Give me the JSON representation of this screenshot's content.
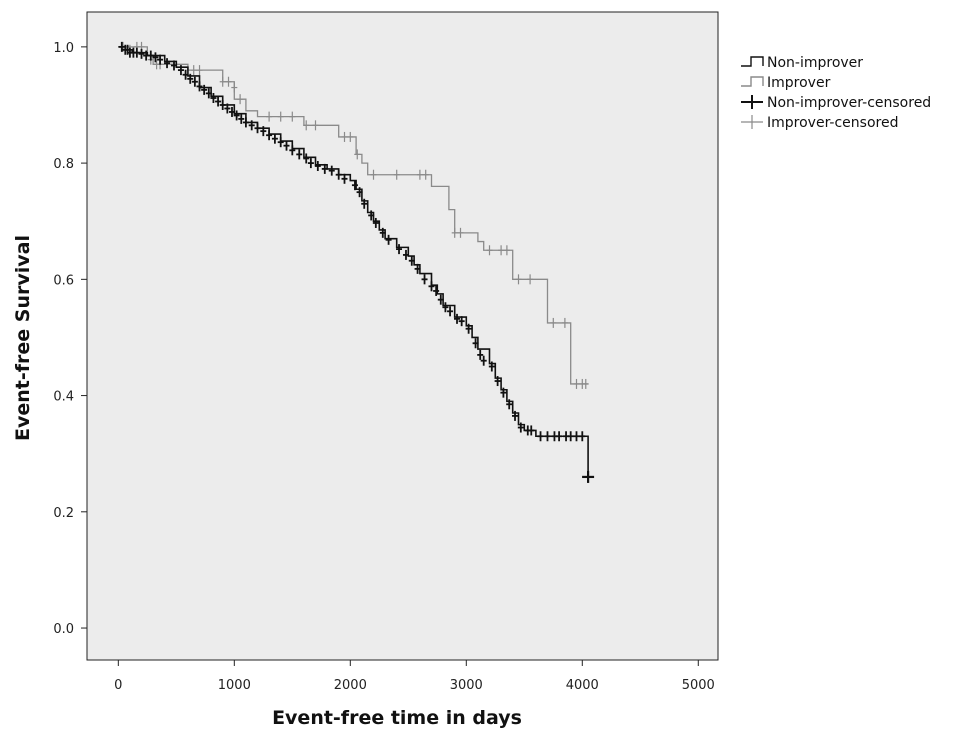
{
  "chart_data": {
    "type": "line",
    "subtype": "kaplan-meier",
    "title": "",
    "xlabel": "Event-free time in days",
    "ylabel": "Event-free Survival",
    "xlim": [
      -270,
      5170
    ],
    "ylim": [
      -0.055,
      1.06
    ],
    "xticks": [
      0,
      1000,
      2000,
      3000,
      4000,
      5000
    ],
    "yticks": [
      0.0,
      0.2,
      0.4,
      0.6,
      0.8,
      1.0
    ],
    "xtick_labels": [
      "0",
      "1000",
      "2000",
      "3000",
      "4000",
      "5000"
    ],
    "ytick_labels": [
      "0.0",
      "0.2",
      "0.4",
      "0.6",
      "0.8",
      "1.0"
    ],
    "grid": false,
    "background": "#ececec",
    "legend_position": "right",
    "legend": [
      "Non-improver",
      "Improver",
      "Non-improver-censored",
      "Improver-censored"
    ],
    "series": [
      {
        "name": "Non-improver",
        "color": "#111111",
        "steps": [
          [
            0,
            1.0
          ],
          [
            30,
            0.995
          ],
          [
            120,
            0.99
          ],
          [
            250,
            0.985
          ],
          [
            400,
            0.975
          ],
          [
            500,
            0.965
          ],
          [
            600,
            0.95
          ],
          [
            700,
            0.93
          ],
          [
            800,
            0.915
          ],
          [
            900,
            0.9
          ],
          [
            1000,
            0.885
          ],
          [
            1100,
            0.87
          ],
          [
            1200,
            0.86
          ],
          [
            1300,
            0.85
          ],
          [
            1400,
            0.838
          ],
          [
            1500,
            0.825
          ],
          [
            1600,
            0.81
          ],
          [
            1700,
            0.797
          ],
          [
            1800,
            0.79
          ],
          [
            1900,
            0.78
          ],
          [
            2000,
            0.77
          ],
          [
            2050,
            0.755
          ],
          [
            2100,
            0.735
          ],
          [
            2150,
            0.715
          ],
          [
            2200,
            0.7
          ],
          [
            2250,
            0.685
          ],
          [
            2300,
            0.67
          ],
          [
            2400,
            0.655
          ],
          [
            2500,
            0.64
          ],
          [
            2550,
            0.625
          ],
          [
            2600,
            0.61
          ],
          [
            2700,
            0.59
          ],
          [
            2750,
            0.575
          ],
          [
            2800,
            0.555
          ],
          [
            2900,
            0.535
          ],
          [
            3000,
            0.52
          ],
          [
            3050,
            0.5
          ],
          [
            3100,
            0.48
          ],
          [
            3200,
            0.455
          ],
          [
            3250,
            0.43
          ],
          [
            3300,
            0.41
          ],
          [
            3350,
            0.39
          ],
          [
            3400,
            0.37
          ],
          [
            3450,
            0.35
          ],
          [
            3500,
            0.34
          ],
          [
            3600,
            0.33
          ],
          [
            4050,
            0.26
          ],
          [
            4070,
            0.26
          ]
        ],
        "censored": [
          [
            30,
            1.0
          ],
          [
            60,
            0.995
          ],
          [
            80,
            0.995
          ],
          [
            100,
            0.99
          ],
          [
            130,
            0.99
          ],
          [
            160,
            0.99
          ],
          [
            200,
            0.988
          ],
          [
            240,
            0.985
          ],
          [
            280,
            0.985
          ],
          [
            320,
            0.982
          ],
          [
            360,
            0.978
          ],
          [
            420,
            0.972
          ],
          [
            480,
            0.968
          ],
          [
            540,
            0.96
          ],
          [
            580,
            0.952
          ],
          [
            620,
            0.945
          ],
          [
            660,
            0.94
          ],
          [
            700,
            0.932
          ],
          [
            740,
            0.926
          ],
          [
            780,
            0.92
          ],
          [
            820,
            0.912
          ],
          [
            860,
            0.906
          ],
          [
            900,
            0.9
          ],
          [
            940,
            0.894
          ],
          [
            980,
            0.888
          ],
          [
            1020,
            0.882
          ],
          [
            1060,
            0.876
          ],
          [
            1100,
            0.87
          ],
          [
            1150,
            0.865
          ],
          [
            1200,
            0.86
          ],
          [
            1250,
            0.855
          ],
          [
            1300,
            0.848
          ],
          [
            1350,
            0.842
          ],
          [
            1400,
            0.836
          ],
          [
            1450,
            0.83
          ],
          [
            1500,
            0.822
          ],
          [
            1560,
            0.815
          ],
          [
            1620,
            0.808
          ],
          [
            1660,
            0.8
          ],
          [
            1720,
            0.795
          ],
          [
            1780,
            0.79
          ],
          [
            1840,
            0.787
          ],
          [
            1900,
            0.78
          ],
          [
            1950,
            0.773
          ],
          [
            2040,
            0.762
          ],
          [
            2080,
            0.75
          ],
          [
            2120,
            0.73
          ],
          [
            2180,
            0.71
          ],
          [
            2220,
            0.697
          ],
          [
            2280,
            0.68
          ],
          [
            2330,
            0.668
          ],
          [
            2420,
            0.652
          ],
          [
            2480,
            0.642
          ],
          [
            2530,
            0.632
          ],
          [
            2580,
            0.618
          ],
          [
            2640,
            0.6
          ],
          [
            2700,
            0.588
          ],
          [
            2740,
            0.58
          ],
          [
            2780,
            0.565
          ],
          [
            2820,
            0.552
          ],
          [
            2860,
            0.545
          ],
          [
            2920,
            0.532
          ],
          [
            2960,
            0.528
          ],
          [
            3020,
            0.515
          ],
          [
            3080,
            0.49
          ],
          [
            3120,
            0.47
          ],
          [
            3150,
            0.46
          ],
          [
            3220,
            0.45
          ],
          [
            3270,
            0.425
          ],
          [
            3320,
            0.405
          ],
          [
            3370,
            0.385
          ],
          [
            3420,
            0.365
          ],
          [
            3470,
            0.345
          ],
          [
            3530,
            0.34
          ],
          [
            3560,
            0.34
          ],
          [
            3640,
            0.33
          ],
          [
            3700,
            0.33
          ],
          [
            3760,
            0.33
          ],
          [
            3800,
            0.33
          ],
          [
            3860,
            0.33
          ],
          [
            3900,
            0.33
          ],
          [
            3950,
            0.33
          ],
          [
            4000,
            0.33
          ],
          [
            4050,
            0.26
          ]
        ]
      },
      {
        "name": "Improver",
        "color": "#8a8a8a",
        "steps": [
          [
            0,
            1.0
          ],
          [
            250,
            0.985
          ],
          [
            300,
            0.97
          ],
          [
            600,
            0.96
          ],
          [
            900,
            0.94
          ],
          [
            1000,
            0.91
          ],
          [
            1100,
            0.89
          ],
          [
            1200,
            0.88
          ],
          [
            1600,
            0.865
          ],
          [
            1900,
            0.845
          ],
          [
            2050,
            0.815
          ],
          [
            2100,
            0.8
          ],
          [
            2150,
            0.78
          ],
          [
            2700,
            0.76
          ],
          [
            2850,
            0.72
          ],
          [
            2900,
            0.68
          ],
          [
            3100,
            0.665
          ],
          [
            3150,
            0.65
          ],
          [
            3400,
            0.6
          ],
          [
            3700,
            0.525
          ],
          [
            3900,
            0.42
          ],
          [
            4050,
            0.42
          ]
        ],
        "censored": [
          [
            40,
            1.0
          ],
          [
            100,
            0.995
          ],
          [
            160,
            1.0
          ],
          [
            200,
            1.0
          ],
          [
            280,
            0.978
          ],
          [
            330,
            0.97
          ],
          [
            360,
            0.97
          ],
          [
            650,
            0.96
          ],
          [
            700,
            0.96
          ],
          [
            900,
            0.94
          ],
          [
            950,
            0.94
          ],
          [
            1000,
            0.93
          ],
          [
            1050,
            0.91
          ],
          [
            1300,
            0.88
          ],
          [
            1400,
            0.88
          ],
          [
            1500,
            0.88
          ],
          [
            1620,
            0.865
          ],
          [
            1700,
            0.865
          ],
          [
            1950,
            0.845
          ],
          [
            2000,
            0.845
          ],
          [
            2060,
            0.815
          ],
          [
            2200,
            0.78
          ],
          [
            2400,
            0.78
          ],
          [
            2600,
            0.78
          ],
          [
            2650,
            0.78
          ],
          [
            2900,
            0.68
          ],
          [
            2950,
            0.68
          ],
          [
            3200,
            0.65
          ],
          [
            3300,
            0.65
          ],
          [
            3350,
            0.65
          ],
          [
            3450,
            0.6
          ],
          [
            3550,
            0.6
          ],
          [
            3750,
            0.525
          ],
          [
            3850,
            0.525
          ],
          [
            3950,
            0.42
          ],
          [
            4000,
            0.42
          ],
          [
            4030,
            0.42
          ]
        ]
      }
    ]
  }
}
